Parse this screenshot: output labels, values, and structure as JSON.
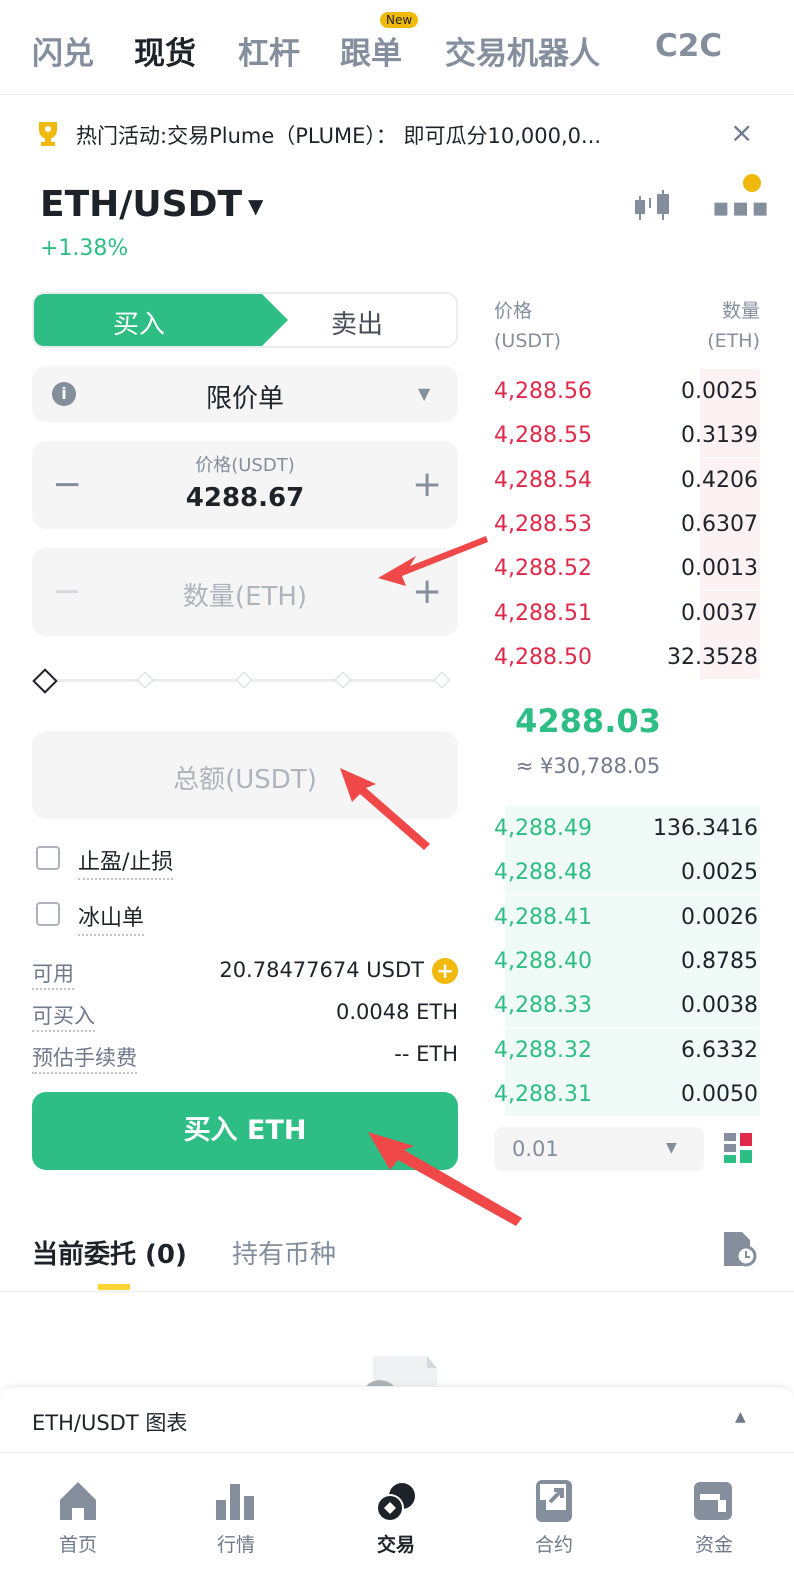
{
  "topnav": {
    "items": [
      "闪兑",
      "现货",
      "杠杆",
      "跟单",
      "交易机器人",
      "C2C"
    ],
    "active": "现货",
    "new_badge": "New"
  },
  "banner": {
    "text": "热门活动:交易Plume（PLUME）： 即可瓜分10,000,0..."
  },
  "pair": {
    "symbol": "ETH/USDT",
    "change": "+1.38%"
  },
  "side_tabs": {
    "buy": "买入",
    "sell": "卖出"
  },
  "order_type": "限价单",
  "price_field": {
    "label": "价格(USDT)",
    "value": "4288.67"
  },
  "amount_field": {
    "placeholder": "数量(ETH)"
  },
  "total_field": {
    "placeholder": "总额(USDT)"
  },
  "options": {
    "tpsl": "止盈/止损",
    "iceberg": "冰山单"
  },
  "info": [
    {
      "label": "可用",
      "value": "20.78477674 USDT"
    },
    {
      "label": "可买入",
      "value": "0.0048 ETH"
    },
    {
      "label": "预估手续费",
      "value": "-- ETH"
    }
  ],
  "buy_button": "买入 ETH",
  "orderbook": {
    "price_header": "价格",
    "price_unit": "(USDT)",
    "qty_header": "数量",
    "qty_unit": "(ETH)",
    "asks": [
      [
        "4,288.56",
        "0.0025"
      ],
      [
        "4,288.55",
        "0.3139"
      ],
      [
        "4,288.54",
        "0.4206"
      ],
      [
        "4,288.53",
        "0.6307"
      ],
      [
        "4,288.52",
        "0.0013"
      ],
      [
        "4,288.51",
        "0.0037"
      ],
      [
        "4,288.50",
        "32.3528"
      ]
    ],
    "last_price": "4288.03",
    "last_price_cny": "≈ ¥30,788.05",
    "bids": [
      [
        "4,288.49",
        "136.3416"
      ],
      [
        "4,288.48",
        "0.0025"
      ],
      [
        "4,288.41",
        "0.0026"
      ],
      [
        "4,288.40",
        "0.8785"
      ],
      [
        "4,288.33",
        "0.0038"
      ],
      [
        "4,288.32",
        "6.6332"
      ],
      [
        "4,288.31",
        "0.0050"
      ]
    ],
    "precision": "0.01"
  },
  "orders_tabs": {
    "open": "当前委托 (0)",
    "holdings": "持有币种"
  },
  "chart_bar": "ETH/USDT 图表",
  "bottom_nav": [
    "首页",
    "行情",
    "交易",
    "合约",
    "资金"
  ],
  "colors": {
    "green": "#2ebd85",
    "red": "#e0294a",
    "yellow": "#f0b90b"
  }
}
